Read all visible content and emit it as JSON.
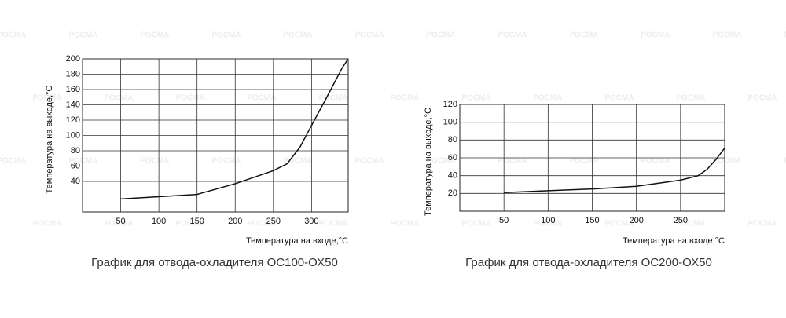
{
  "watermark": "РОСМА",
  "chart_data": [
    {
      "type": "line",
      "title": "График для отвода-охладителя ОС100-ОХ50",
      "x_label": "Температура на входе,°С",
      "y_label": "Температура на выходе,°С",
      "x": [
        50,
        100,
        150,
        200,
        250,
        268,
        285,
        300,
        320,
        340,
        348
      ],
      "series": [
        {
          "color": "#111111",
          "values": [
            17,
            20,
            23,
            37,
            54,
            63,
            85,
            113,
            150,
            188,
            200
          ]
        }
      ],
      "xlim": [
        0,
        348
      ],
      "ylim": [
        0,
        200
      ],
      "xticks": [
        50,
        100,
        150,
        200,
        250,
        300
      ],
      "yticks": [
        40,
        60,
        80,
        100,
        120,
        140,
        160,
        180,
        200
      ],
      "grid": true
    },
    {
      "type": "line",
      "title": "График для отвода-охладителя ОС200-ОХ50",
      "x_label": "Температура на входе,°С",
      "y_label": "Температура на выходе,°С",
      "x": [
        50,
        100,
        150,
        200,
        250,
        270,
        280,
        290,
        300
      ],
      "series": [
        {
          "color": "#111111",
          "values": [
            21,
            23,
            25,
            28,
            35,
            40,
            47,
            58,
            71
          ]
        }
      ],
      "xlim": [
        0,
        300
      ],
      "ylim": [
        0,
        120
      ],
      "xticks": [
        50,
        100,
        150,
        200,
        250
      ],
      "yticks": [
        20,
        40,
        60,
        80,
        100,
        120
      ],
      "grid": true
    }
  ]
}
